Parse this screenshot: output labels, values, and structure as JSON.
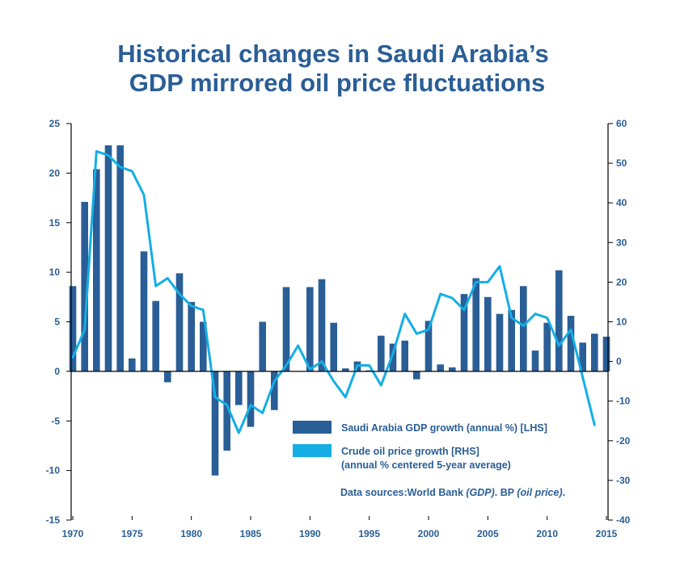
{
  "chart_data": {
    "type": "bar",
    "title_lines": [
      "Historical changes in Saudi Arabia’s",
      "GDP mirrored oil price fluctuations"
    ],
    "colors": {
      "bar": "#2a5e96",
      "line": "#14aee5",
      "text": "#2a5e96",
      "axis": "#000000"
    },
    "x_ticks": [
      "1970",
      "1975",
      "1980",
      "1985",
      "1990",
      "1995",
      "2000",
      "2005",
      "2010",
      "2015"
    ],
    "left_axis": {
      "min": -15,
      "max": 25,
      "ticks": [
        "25",
        "20",
        "15",
        "10",
        "5",
        "0",
        "-5",
        "-10",
        "-15"
      ]
    },
    "right_axis": {
      "min": -40,
      "max": 60,
      "ticks": [
        "60",
        "50",
        "40",
        "30",
        "20",
        "10",
        "0",
        "-10",
        "-20",
        "-30",
        "-40"
      ]
    },
    "xlim": [
      1970,
      2015
    ],
    "series": [
      {
        "name": "Saudi Arabia  GDP growth (annual %) [LHS]",
        "type": "bar",
        "axis": "left",
        "x": [
          1970,
          1971,
          1972,
          1973,
          1974,
          1975,
          1976,
          1977,
          1978,
          1979,
          1980,
          1981,
          1982,
          1983,
          1984,
          1985,
          1986,
          1987,
          1988,
          1989,
          1990,
          1991,
          1992,
          1993,
          1994,
          1995,
          1996,
          1997,
          1998,
          1999,
          2000,
          2001,
          2002,
          2003,
          2004,
          2005,
          2006,
          2007,
          2008,
          2009,
          2010,
          2011,
          2012,
          2013,
          2014,
          2015
        ],
        "values": [
          8.6,
          17.1,
          20.4,
          22.8,
          22.8,
          1.3,
          12.1,
          7.1,
          -1.1,
          9.9,
          7.0,
          5.0,
          -10.5,
          -8.0,
          -3.4,
          -5.6,
          5.0,
          -3.9,
          8.5,
          0.0,
          8.5,
          9.3,
          4.9,
          0.3,
          1.0,
          0.1,
          3.6,
          2.8,
          3.1,
          -0.8,
          5.1,
          0.7,
          0.4,
          7.8,
          9.4,
          7.5,
          5.8,
          6.2,
          8.6,
          2.1,
          4.9,
          10.2,
          5.6,
          2.9,
          3.8,
          3.5
        ]
      },
      {
        "name_lines": [
          "Crude oil price growth [RHS]",
          "(annual % centered 5-year average)"
        ],
        "type": "line",
        "axis": "right",
        "x": [
          1970,
          1971,
          1972,
          1973,
          1974,
          1975,
          1976,
          1977,
          1978,
          1979,
          1980,
          1981,
          1982,
          1983,
          1984,
          1985,
          1986,
          1987,
          1988,
          1989,
          1990,
          1991,
          1992,
          1993,
          1994,
          1995,
          1996,
          1997,
          1998,
          1999,
          2000,
          2001,
          2002,
          2003,
          2004,
          2005,
          2006,
          2007,
          2008,
          2009,
          2010,
          2011,
          2012,
          2013,
          2014
        ],
        "values": [
          1,
          8,
          53,
          52,
          49,
          48,
          42,
          19,
          21,
          17,
          14,
          13,
          -9,
          -11,
          -18,
          -11,
          -13,
          -5,
          -1,
          4,
          -2,
          0,
          -5,
          -9,
          -1,
          -1,
          -6,
          2,
          12,
          7,
          8,
          17,
          16,
          13,
          20,
          20,
          24,
          11,
          9,
          12,
          11,
          4,
          8,
          -4,
          -16
        ]
      }
    ],
    "legend": {
      "placement": "lower-right"
    },
    "source_note": {
      "prefix": "Data sources:World Bank ",
      "gdp_italic": "(GDP)",
      "middle": ". BP ",
      "oil_italic": "(oil price)",
      "suffix": "."
    }
  }
}
